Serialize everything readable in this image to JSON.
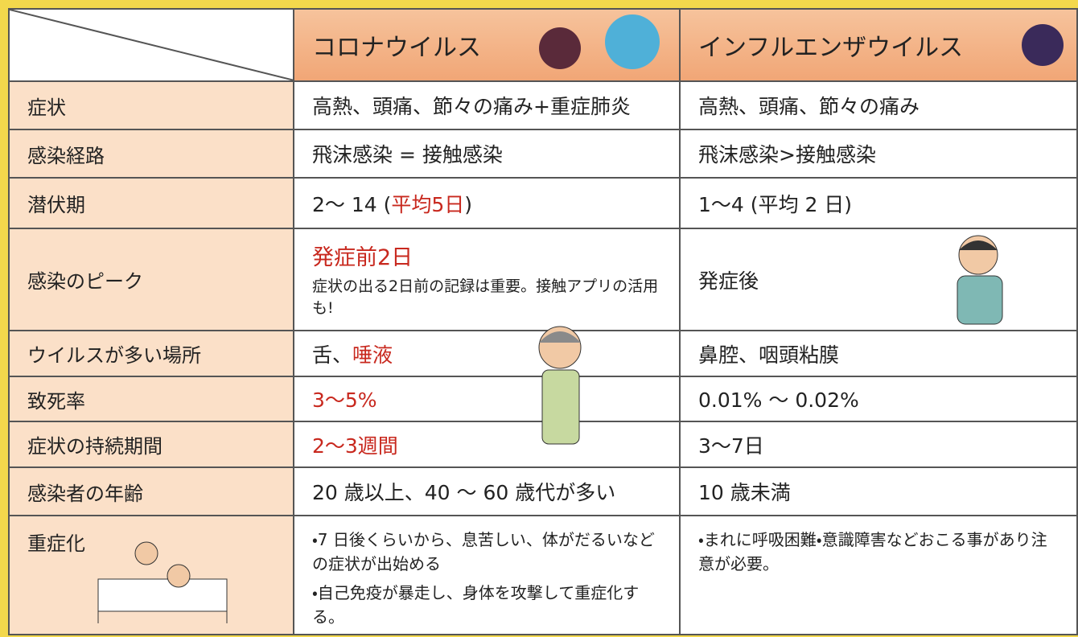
{
  "header": {
    "corona": "コロナウイルス",
    "flu": "インフルエンザウイルス"
  },
  "rows": [
    {
      "label": "症状",
      "corona": [
        "高熱、頭痛、節々の痛み+重症肺炎"
      ],
      "flu": [
        "高熱、頭痛、節々の痛み"
      ]
    },
    {
      "label": "感染経路",
      "corona": [
        "飛沫感染 = 接触感染"
      ],
      "flu": [
        "飛沫感染>接触感染"
      ]
    },
    {
      "label": "潜伏期",
      "corona": [
        "2〜 14 (",
        "平均5日",
        ")"
      ],
      "flu": [
        "1〜4 (平均 2 日)"
      ]
    },
    {
      "label": "感染のピーク",
      "corona": [
        "発症前2日",
        "症状の出る2日前の記録は重要。接触アプリの活用も!"
      ],
      "flu": [
        "発症後"
      ]
    },
    {
      "label": "ウイルスが多い場所",
      "corona": [
        "舌、",
        "唾液"
      ],
      "flu": [
        "鼻腔、咽頭粘膜"
      ]
    },
    {
      "label": "致死率",
      "corona": [
        "3〜5%"
      ],
      "flu": [
        "0.01% 〜 0.02%"
      ]
    },
    {
      "label": "症状の持続期間",
      "corona": [
        "2〜3週間"
      ],
      "flu": [
        "3〜7日"
      ]
    },
    {
      "label": "感染者の年齢",
      "corona": [
        "20 歳以上、40 〜 60 歳代が多い"
      ],
      "flu": [
        "10 歳未満"
      ]
    },
    {
      "label": "重症化",
      "corona": [
        "・7 日後くらいから、息苦しい、体がだるいなどの症状が出始める",
        "・自己免疫が暴走し、身体を攻撃して重症化する。"
      ],
      "flu": [
        "・まれに呼吸困難・意識障害などおこる事があり注意が必要。"
      ]
    }
  ]
}
